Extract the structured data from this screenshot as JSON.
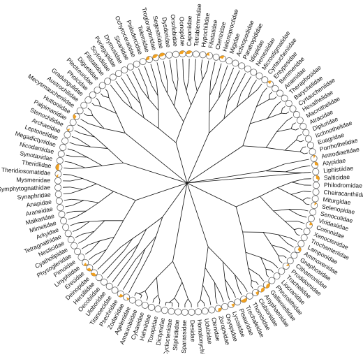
{
  "tree": {
    "highlight_color": "#f0a020",
    "tips": [
      {
        "label": "Liphistiidae",
        "state": 0
      },
      {
        "label": "Salticidae",
        "state": 0.35
      },
      {
        "label": "Philodromidae",
        "state": 0
      },
      {
        "label": "Cheiracanthiidae",
        "state": 0
      },
      {
        "label": "Miturgidae",
        "state": 0
      },
      {
        "label": "Selenopidae",
        "state": 0.1
      },
      {
        "label": "Senoculidae",
        "state": 0
      },
      {
        "label": "Viridasiidae",
        "state": 0
      },
      {
        "label": "Corinnidae",
        "state": 0.2
      },
      {
        "label": "Xenoctenidae",
        "state": 0
      },
      {
        "label": "Trochanteriidae",
        "state": 0
      },
      {
        "label": "Lamponidae",
        "state": 0
      },
      {
        "label": "Ammoxenidae",
        "state": 0.3
      },
      {
        "label": "Gnaphosidae",
        "state": 0
      },
      {
        "label": "Cithaeronidae",
        "state": 0
      },
      {
        "label": "Prodidomidae",
        "state": 0.1
      },
      {
        "label": "Trachelidae",
        "state": 0
      },
      {
        "label": "Liocranidae",
        "state": 0
      },
      {
        "label": "Phrurolithidae",
        "state": 0
      },
      {
        "label": "Gallieniellidae",
        "state": 0.4
      },
      {
        "label": "Anyphaenidae",
        "state": 0.35
      },
      {
        "label": "Clubionidae",
        "state": 0.25
      },
      {
        "label": "Thomisidae",
        "state": 0
      },
      {
        "label": "Trechaleidae",
        "state": 0.5
      },
      {
        "label": "Pisauridae",
        "state": 0
      },
      {
        "label": "Lycosidae",
        "state": 0.2
      },
      {
        "label": "Oxyopidae",
        "state": 0
      },
      {
        "label": "Zoropsidae",
        "state": 0.3
      },
      {
        "label": "Ctenidae",
        "state": 0
      },
      {
        "label": "Udubidae",
        "state": 0
      },
      {
        "label": "Homalonychidae",
        "state": 0
      },
      {
        "label": "Desidae",
        "state": 0
      },
      {
        "label": "Sparassidae",
        "state": 0
      },
      {
        "label": "Stiphidiidae",
        "state": 0
      },
      {
        "label": "Cycloctenidae",
        "state": 0
      },
      {
        "label": "Dictynidae",
        "state": 0
      },
      {
        "label": "Toxopidae",
        "state": 0
      },
      {
        "label": "Hahniidae",
        "state": 0
      },
      {
        "label": "Cybaeidae",
        "state": 0
      },
      {
        "label": "Amaurobiidae",
        "state": 0
      },
      {
        "label": "Agelenidae",
        "state": 0
      },
      {
        "label": "Zodariidae",
        "state": 0.1
      },
      {
        "label": "Psechridae",
        "state": 0.25
      },
      {
        "label": "Titanoecidae",
        "state": 0
      },
      {
        "label": "Uloboridae",
        "state": 0
      },
      {
        "label": "Oecobiidae",
        "state": 0
      },
      {
        "label": "Hersiliidae",
        "state": 0
      },
      {
        "label": "Deinopidae",
        "state": 0.35
      },
      {
        "label": "Eresidae",
        "state": 0.3
      },
      {
        "label": "Linyphiidae",
        "state": 0.2
      },
      {
        "label": "Pimoidae",
        "state": 0
      },
      {
        "label": "Physoglenidae",
        "state": 0
      },
      {
        "label": "Cyatholipidae",
        "state": 0
      },
      {
        "label": "Nesticidae",
        "state": 0
      },
      {
        "label": "Tetragnathidae",
        "state": 0
      },
      {
        "label": "Arkyidae",
        "state": 0
      },
      {
        "label": "Mimetidae",
        "state": 0
      },
      {
        "label": "Malkaridae",
        "state": 0
      },
      {
        "label": "Araneidae",
        "state": 0
      },
      {
        "label": "Anapidae",
        "state": 0
      },
      {
        "label": "Synaphridae",
        "state": 0
      },
      {
        "label": "Symphytognathidae",
        "state": 0
      },
      {
        "label": "Mysmenidae",
        "state": 0
      },
      {
        "label": "Theridiosomatidae",
        "state": 0.1
      },
      {
        "label": "Theridiidae",
        "state": 0.5
      },
      {
        "label": "Synotaxidae",
        "state": 0
      },
      {
        "label": "Nicodamidae",
        "state": 0
      },
      {
        "label": "Megadictynidae",
        "state": 0
      },
      {
        "label": "Leptonetidae",
        "state": 0
      },
      {
        "label": "Archaeidae",
        "state": 0
      },
      {
        "label": "Stenochilidae",
        "state": 0.1
      },
      {
        "label": "Palpimanidae",
        "state": 0
      },
      {
        "label": "Huttoniidae",
        "state": 0.3
      },
      {
        "label": "Mecysmaucheniidae",
        "state": 0
      },
      {
        "label": "Austrochilidae",
        "state": 0
      },
      {
        "label": "Gradungulidae",
        "state": 0
      },
      {
        "label": "Pholcidae",
        "state": 0
      },
      {
        "label": "Plectreuridae",
        "state": 0
      },
      {
        "label": "Diguetidae",
        "state": 0
      },
      {
        "label": "Filistatidae",
        "state": 0
      },
      {
        "label": "Scytodidae",
        "state": 0
      },
      {
        "label": "Periegopidae",
        "state": 0
      },
      {
        "label": "Drymusidae",
        "state": 0
      },
      {
        "label": "Sicariidae",
        "state": 0
      },
      {
        "label": "Ochyroceratidae",
        "state": 0
      },
      {
        "label": "Psilodercidae",
        "state": 0
      },
      {
        "label": "Telemidae",
        "state": 0.3
      },
      {
        "label": "Trogloraptoridae",
        "state": 0.4
      },
      {
        "label": "Segestriidae",
        "state": 0.45
      },
      {
        "label": "Dysderidae",
        "state": 0
      },
      {
        "label": "Orsolobidae",
        "state": 0
      },
      {
        "label": "Oonopidae",
        "state": 0.35
      },
      {
        "label": "Caponiidae",
        "state": 0.4
      },
      {
        "label": "Tetrablemmidae",
        "state": 0
      },
      {
        "label": "Hypochilidae",
        "state": 0
      },
      {
        "label": "Filistatidae",
        "state": 0.2
      },
      {
        "label": "Ctenizidae",
        "state": 0
      },
      {
        "label": "Halonoproctidae",
        "state": 0.3
      },
      {
        "label": "Migidae",
        "state": 0
      },
      {
        "label": "Actinopodidae",
        "state": 0
      },
      {
        "label": "Paratropididae",
        "state": 0
      },
      {
        "label": "Idiopidae",
        "state": 0
      },
      {
        "label": "Nemesiidae",
        "state": 0
      },
      {
        "label": "Microstigmatidae",
        "state": 0
      },
      {
        "label": "Cyrtaucheniidae",
        "state": 0
      },
      {
        "label": "Entypesidae",
        "state": 0.2
      },
      {
        "label": "Bemmeridae",
        "state": 0
      },
      {
        "label": "Anamidae",
        "state": 0
      },
      {
        "label": "Theraphosidae",
        "state": 0
      },
      {
        "label": "Barychelidae",
        "state": 0
      },
      {
        "label": "Cyrtaucheniidae",
        "state": 0
      },
      {
        "label": "Hexathelidae",
        "state": 0
      },
      {
        "label": "Macrothelidae",
        "state": 0
      },
      {
        "label": "Atracidae",
        "state": 0
      },
      {
        "label": "Dipluridae",
        "state": 0
      },
      {
        "label": "Ischnothelidae",
        "state": 0
      },
      {
        "label": "Euagridae",
        "state": 0
      },
      {
        "label": "Porrhothelidae",
        "state": 0
      },
      {
        "label": "Antrodiaetidae",
        "state": 0.1
      },
      {
        "label": "Atypidae",
        "state": 0.3
      }
    ]
  }
}
